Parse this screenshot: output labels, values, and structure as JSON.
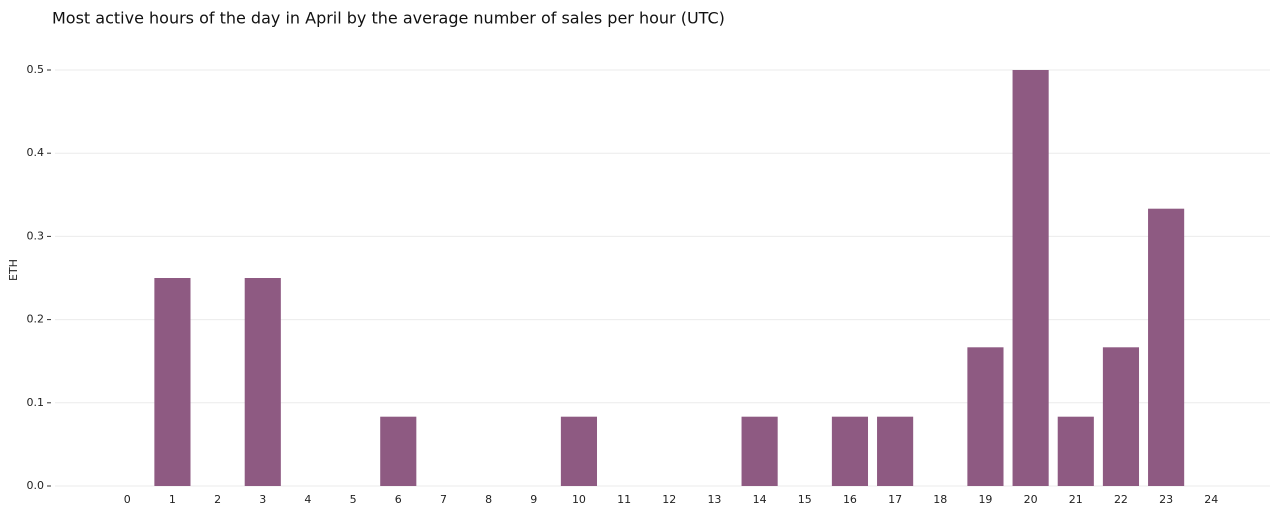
{
  "chart_data": {
    "type": "bar",
    "title": "Most active hours of the day in April by the average number of sales per hour (UTC)",
    "y_label": "ETH",
    "x": [
      1,
      3,
      6,
      10,
      14,
      16,
      17,
      19,
      20,
      21,
      22,
      23
    ],
    "values": [
      0.25,
      0.25,
      0.0833,
      0.0833,
      0.0833,
      0.0833,
      0.0833,
      0.1667,
      0.5,
      0.0833,
      0.1667,
      0.3333
    ],
    "color": "#8e5a82",
    "xlim": [
      -1.6,
      25.3
    ],
    "xticks": [
      0,
      1,
      2,
      3,
      4,
      5,
      6,
      7,
      8,
      9,
      10,
      11,
      12,
      13,
      14,
      15,
      16,
      17,
      18,
      19,
      20,
      21,
      22,
      23,
      24
    ],
    "ylim": [
      0,
      0.5
    ],
    "yticks": [
      {
        "value": 0,
        "label": "0.0"
      },
      0.1,
      0.2,
      0.3,
      0.4,
      0.5
    ],
    "grid": true
  }
}
